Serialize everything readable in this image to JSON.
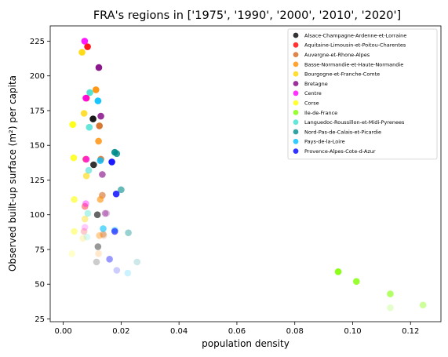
{
  "chart_data": {
    "type": "scatter",
    "title": "FRA's regions in ['1975', '1990', '2000', '2010', '2020']",
    "xlabel": "population density",
    "ylabel": "Observed built-up surface (m²) per capita",
    "xlim": [
      -0.0045,
      0.1305
    ],
    "ylim": [
      23,
      236
    ],
    "xticks": [
      0.0,
      0.02,
      0.04,
      0.06,
      0.08,
      0.1,
      0.12
    ],
    "xtick_labels": [
      "0.00",
      "0.02",
      "0.04",
      "0.06",
      "0.08",
      "0.10",
      "0.12"
    ],
    "yticks": [
      25,
      50,
      75,
      100,
      125,
      150,
      175,
      200,
      225
    ],
    "ytick_labels": [
      "25",
      "50",
      "75",
      "100",
      "125",
      "150",
      "175",
      "200",
      "225"
    ],
    "grid": false,
    "legend_position": "top-right",
    "years": [
      "1975",
      "1990",
      "2000",
      "2010",
      "2020"
    ],
    "opacity_by_year": [
      0.2,
      0.4,
      0.6,
      0.8,
      0.9
    ],
    "series": [
      {
        "name": "Alsace-Champagne-Ardenne-et-Lorraine",
        "color": "#000000",
        "x": [
          0.0115,
          0.012,
          0.0118,
          0.0105,
          0.0103
        ],
        "y": [
          66,
          77,
          100,
          136,
          169
        ]
      },
      {
        "name": "Aquitaine-Limousin-et-Poitou-Charentes",
        "color": "#ff0000",
        "x": [
          0.0072,
          0.0075,
          0.0078,
          0.008,
          0.0084
        ],
        "y": [
          88,
          106,
          140,
          184,
          221
        ]
      },
      {
        "name": "Auvergne-et-Rhone-Alpes",
        "color": "#d2691e",
        "x": [
          0.014,
          0.0138,
          0.0135,
          0.013,
          0.0125
        ],
        "y": [
          85,
          86,
          114,
          140,
          164
        ]
      },
      {
        "name": "Basse-Normandie-et-Haute-Normandie",
        "color": "#ff8c00",
        "x": [
          0.0122,
          0.0125,
          0.0128,
          0.0122,
          0.0113
        ],
        "y": [
          72,
          85,
          111,
          153,
          190
        ]
      },
      {
        "name": "Bourgogne-et-Franche-Comte",
        "color": "#ffd700",
        "x": [
          0.0068,
          0.0075,
          0.008,
          0.0072,
          0.0065
        ],
        "y": [
          83,
          97,
          128,
          173,
          217
        ]
      },
      {
        "name": "Bretagne",
        "color": "#800080",
        "x": [
          0.015,
          0.0145,
          0.0135,
          0.013,
          0.0123
        ],
        "y": [
          101,
          101,
          129,
          171,
          206
        ]
      },
      {
        "name": "Centre",
        "color": "#ff00ff",
        "x": [
          0.0075,
          0.0078,
          0.008,
          0.0078,
          0.0074
        ],
        "y": [
          91,
          108,
          140,
          184,
          225
        ]
      },
      {
        "name": "Corse",
        "color": "#ffff00",
        "x": [
          0.003,
          0.0038,
          0.0038,
          0.0036,
          0.0033
        ],
        "y": [
          72,
          88,
          111,
          141,
          165
        ]
      },
      {
        "name": "Ile-de-France",
        "color": "#7fff00",
        "x": [
          0.113,
          0.1243,
          0.113,
          0.1013,
          0.095
        ],
        "y": [
          33,
          35,
          43,
          52,
          59
        ]
      },
      {
        "name": "Languedoc-Roussillon-et-Midi-Pyrenees",
        "color": "#40e0d0",
        "x": [
          0.0082,
          0.0085,
          0.0088,
          0.009,
          0.0092
        ],
        "y": [
          84,
          101,
          132,
          163,
          188
        ]
      },
      {
        "name": "Nord-Pas-de-Calais-et-Picardie",
        "color": "#008b8b",
        "x": [
          0.0255,
          0.0225,
          0.02,
          0.0185,
          0.0178
        ],
        "y": [
          66,
          87,
          118,
          144,
          145
        ]
      },
      {
        "name": "Pays-de-la-Loire",
        "color": "#00bfff",
        "x": [
          0.0223,
          0.0178,
          0.0138,
          0.0128,
          0.012
        ],
        "y": [
          58,
          89,
          90,
          139,
          182
        ]
      },
      {
        "name": "Provence-Alpes-Cote-d-Azur",
        "color": "#0000ff",
        "x": [
          0.0185,
          0.016,
          0.0178,
          0.0183,
          0.0168
        ],
        "y": [
          60,
          68,
          88,
          115,
          138
        ]
      }
    ]
  }
}
